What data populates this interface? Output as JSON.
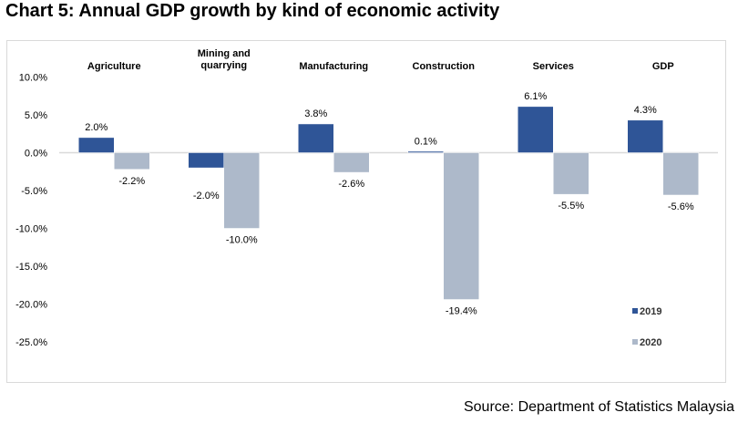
{
  "title": "Chart 5: Annual GDP growth by kind of economic activity",
  "source": "Source: Department of Statistics Malaysia",
  "colors": {
    "series_2019": "#2F5597",
    "series_2020": "#ADB9CA",
    "zero_line": "#D9D9D9",
    "frame": "#D9D9D9"
  },
  "chart_data": {
    "type": "bar",
    "title": "Chart 5: Annual GDP growth by kind of economic activity",
    "xlabel": "",
    "ylabel": "",
    "categories": [
      "Agriculture",
      "Mining and quarrying",
      "Manufacturing",
      "Construction",
      "Services",
      "GDP"
    ],
    "category_lines": [
      [
        "Agriculture"
      ],
      [
        "Mining and",
        "quarrying"
      ],
      [
        "Manufacturing"
      ],
      [
        "Construction"
      ],
      [
        "Services"
      ],
      [
        "GDP"
      ]
    ],
    "series": [
      {
        "name": "2019",
        "values": [
          2.0,
          -2.0,
          3.8,
          0.1,
          6.1,
          4.3
        ],
        "labels": [
          "2.0%",
          "-2.0%",
          "3.8%",
          "0.1%",
          "6.1%",
          "4.3%"
        ]
      },
      {
        "name": "2020",
        "values": [
          -2.2,
          -10.0,
          -2.6,
          -19.4,
          -5.5,
          -5.6
        ],
        "labels": [
          "-2.2%",
          "-10.0%",
          "-2.6%",
          "-19.4%",
          "-5.5%",
          "-5.6%"
        ]
      }
    ],
    "ylim": [
      -25,
      10
    ],
    "yticks": [
      10,
      5,
      0,
      -5,
      -10,
      -15,
      -20,
      -25
    ],
    "ytick_labels": [
      "10.0%",
      "5.0%",
      "0.0%",
      "-5.0%",
      "-10.0%",
      "-15.0%",
      "-20.0%",
      "-25.0%"
    ],
    "category_axis_position": "top",
    "grid": false,
    "legend": {
      "entries": [
        "2019",
        "2020"
      ],
      "position": "bottom-right"
    }
  }
}
